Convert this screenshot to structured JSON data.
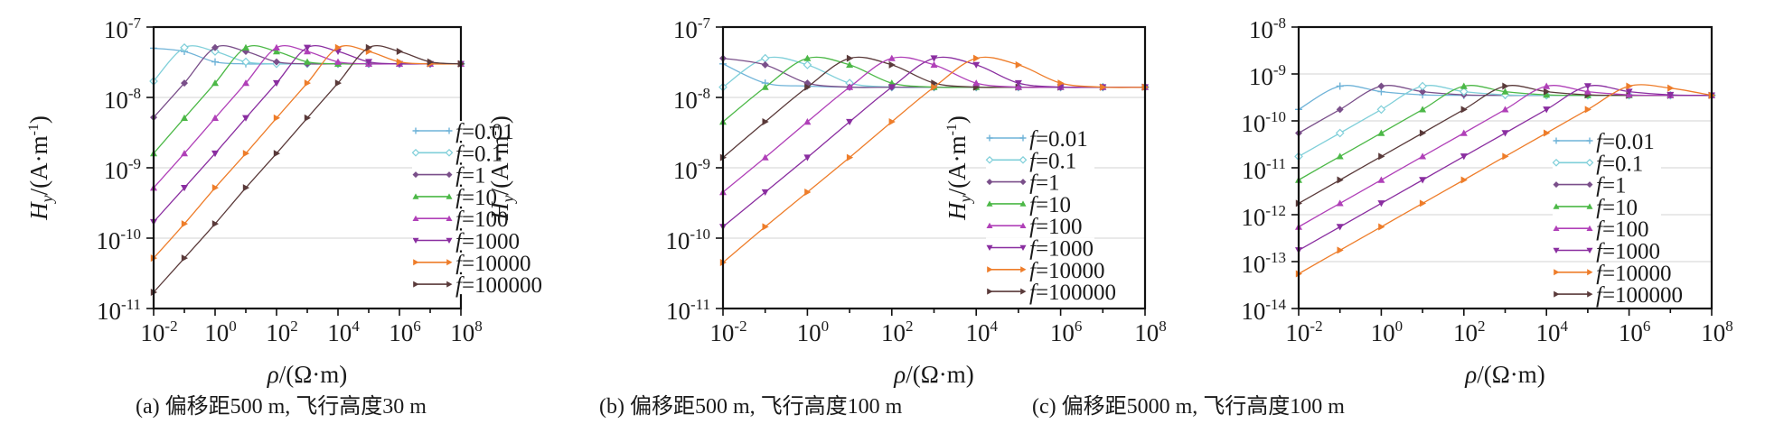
{
  "figure": {
    "panels": [
      "a",
      "b",
      "c"
    ]
  },
  "legend_styles": [
    {
      "name": "f=0.01",
      "color": "#6fb3d8",
      "marker": "plus"
    },
    {
      "name": "f=0.1",
      "color": "#7fcfd9",
      "marker": "open-diamond"
    },
    {
      "name": "f=1",
      "color": "#7a4f8a",
      "marker": "diamond"
    },
    {
      "name": "f=10",
      "color": "#4cb847",
      "marker": "triangle-up"
    },
    {
      "name": "f=100",
      "color": "#b040b8",
      "marker": "triangle-up"
    },
    {
      "name": "f=1000",
      "color": "#8a2ea0",
      "marker": "triangle-down"
    },
    {
      "name": "f=10000",
      "color": "#ee7d2a",
      "marker": "triangle-right"
    },
    {
      "name": "f=100000",
      "color": "#5a3a3a",
      "marker": "triangle-right"
    }
  ],
  "chart_data": [
    {
      "type": "line",
      "panel": "a",
      "caption": "(a) 偏移距500 m, 飞行高度30 m",
      "xlabel": "ρ/(Ω·m)",
      "ylabel": "Hy/(A·m-1)",
      "xscale": "log",
      "yscale": "log",
      "xlim": [
        0.01,
        100000000
      ],
      "ylim": [
        1e-11,
        1e-07
      ],
      "xticks": [
        "10-2",
        "100",
        "102",
        "104",
        "106",
        "108"
      ],
      "yticks": [
        "10-7",
        "10-8",
        "10-9",
        "10-10",
        "10-11"
      ],
      "grid": "horizontal",
      "legend_position": "right-middle",
      "x": [
        0.01,
        0.1,
        1,
        10,
        100,
        1000,
        10000,
        100000,
        1000000,
        10000000,
        100000000
      ],
      "series": [
        {
          "name": "f=0.01",
          "style": 0,
          "values": [
            5e-08,
            4.5e-08,
            3.2e-08,
            3e-08,
            3e-08,
            3e-08,
            3e-08,
            3e-08,
            3e-08,
            3e-08,
            3e-08
          ]
        },
        {
          "name": "f=0.1",
          "style": 1,
          "values": [
            1.7e-08,
            5.1e-08,
            4.5e-08,
            3.2e-08,
            3e-08,
            3e-08,
            3e-08,
            3e-08,
            3e-08,
            3e-08,
            3e-08
          ]
        },
        {
          "name": "f=1",
          "style": 2,
          "values": [
            5.2e-09,
            1.6e-08,
            5.1e-08,
            4.5e-08,
            3.2e-08,
            3e-08,
            3e-08,
            3e-08,
            3e-08,
            3e-08,
            3e-08
          ]
        },
        {
          "name": "f=10",
          "style": 3,
          "values": [
            1.6e-09,
            5.1e-09,
            1.6e-08,
            5.1e-08,
            4.5e-08,
            3.2e-08,
            3e-08,
            3e-08,
            3e-08,
            3e-08,
            3e-08
          ]
        },
        {
          "name": "f=100",
          "style": 4,
          "values": [
            5.2e-10,
            1.6e-09,
            5.1e-09,
            1.6e-08,
            5.1e-08,
            4.5e-08,
            3.2e-08,
            3e-08,
            3e-08,
            3e-08,
            3e-08
          ]
        },
        {
          "name": "f=1000",
          "style": 5,
          "values": [
            1.7e-10,
            5.2e-10,
            1.6e-09,
            5.1e-09,
            1.6e-08,
            5.1e-08,
            4.5e-08,
            3.2e-08,
            3e-08,
            3e-08,
            3e-08
          ]
        },
        {
          "name": "f=10000",
          "style": 6,
          "values": [
            5.2e-11,
            1.6e-10,
            5.2e-10,
            1.6e-09,
            5.1e-09,
            1.6e-08,
            5.1e-08,
            4.5e-08,
            3.2e-08,
            3e-08,
            3e-08
          ]
        },
        {
          "name": "f=100000",
          "style": 7,
          "values": [
            1.7e-11,
            5.2e-11,
            1.6e-10,
            5.2e-10,
            1.6e-09,
            5.1e-09,
            1.6e-08,
            5.1e-08,
            4.5e-08,
            3.2e-08,
            3e-08
          ]
        }
      ]
    },
    {
      "type": "line",
      "panel": "b",
      "caption": "(b) 偏移距500 m, 飞行高度100 m",
      "xlabel": "ρ/(Ω·m)",
      "ylabel": "Hy/(A·m-1)",
      "xscale": "log",
      "yscale": "log",
      "xlim": [
        0.01,
        100000000
      ],
      "ylim": [
        1e-11,
        1e-07
      ],
      "xticks": [
        "10-2",
        "100",
        "102",
        "104",
        "106",
        "108"
      ],
      "yticks": [
        "10-7",
        "10-8",
        "10-9",
        "10-10",
        "10-11"
      ],
      "grid": "horizontal",
      "legend_position": "right-middle",
      "x": [
        0.01,
        0.1,
        1,
        10,
        100,
        1000,
        10000,
        100000,
        1000000,
        10000000,
        100000000
      ],
      "series": [
        {
          "name": "f=0.01",
          "style": 0,
          "values": [
            3e-08,
            1.6e-08,
            1.45e-08,
            1.4e-08,
            1.4e-08,
            1.4e-08,
            1.4e-08,
            1.4e-08,
            1.4e-08,
            1.4e-08,
            1.4e-08
          ]
        },
        {
          "name": "f=0.1",
          "style": 1,
          "values": [
            1.4e-08,
            3.6e-08,
            2.9e-08,
            1.6e-08,
            1.4e-08,
            1.4e-08,
            1.4e-08,
            1.4e-08,
            1.4e-08,
            1.4e-08,
            1.4e-08
          ]
        },
        {
          "name": "f=1",
          "style": 2,
          "values": [
            3.6e-08,
            2.9e-08,
            1.6e-08,
            1.4e-08,
            1.4e-08,
            1.4e-08,
            1.4e-08,
            1.4e-08,
            1.4e-08,
            1.4e-08,
            1.4e-08
          ]
        },
        {
          "name": "f=10",
          "style": 3,
          "values": [
            4.5e-09,
            1.4e-08,
            3.6e-08,
            2.9e-08,
            1.6e-08,
            1.4e-08,
            1.4e-08,
            1.4e-08,
            1.4e-08,
            1.4e-08,
            1.4e-08
          ]
        },
        {
          "name": "f=100",
          "style": 7,
          "values": [
            1.4e-09,
            4.5e-09,
            1.4e-08,
            3.6e-08,
            2.9e-08,
            1.6e-08,
            1.4e-08,
            1.4e-08,
            1.4e-08,
            1.4e-08,
            1.4e-08
          ]
        },
        {
          "name": "f=1000",
          "style": 4,
          "values": [
            4.5e-10,
            1.4e-09,
            4.5e-09,
            1.4e-08,
            3.6e-08,
            2.9e-08,
            1.6e-08,
            1.4e-08,
            1.4e-08,
            1.4e-08,
            1.4e-08
          ]
        },
        {
          "name": "f=10000",
          "style": 5,
          "values": [
            1.45e-10,
            4.5e-10,
            1.4e-09,
            4.5e-09,
            1.4e-08,
            3.6e-08,
            2.9e-08,
            1.6e-08,
            1.4e-08,
            1.4e-08,
            1.4e-08
          ]
        },
        {
          "name": "f=100000",
          "style": 6,
          "values": [
            4.5e-11,
            1.45e-10,
            4.5e-10,
            1.4e-09,
            4.5e-09,
            1.4e-08,
            3.6e-08,
            2.9e-08,
            1.6e-08,
            1.4e-08,
            1.4e-08
          ]
        }
      ]
    },
    {
      "type": "line",
      "panel": "c",
      "caption": "(c) 偏移距5000 m, 飞行高度100 m",
      "xlabel": "ρ/(Ω·m)",
      "ylabel": "Hy/(A·m-1)",
      "xscale": "log",
      "yscale": "log",
      "xlim": [
        0.01,
        100000000
      ],
      "ylim": [
        1e-14,
        1e-08
      ],
      "xticks": [
        "10-2",
        "100",
        "102",
        "104",
        "106",
        "108"
      ],
      "yticks": [
        "10-8",
        "10-9",
        "10-10",
        "10-11",
        "10-12",
        "10-13",
        "10-14"
      ],
      "grid": "horizontal",
      "legend_position": "right-middle",
      "x": [
        0.01,
        0.1,
        1,
        10,
        100,
        1000,
        10000,
        100000,
        1000000,
        10000000,
        100000000
      ],
      "series": [
        {
          "name": "f=0.01",
          "style": 0,
          "values": [
            1.75e-10,
            5.5e-10,
            4.2e-10,
            3.6e-10,
            3.5e-10,
            3.5e-10,
            3.5e-10,
            3.5e-10,
            3.5e-10,
            3.5e-10,
            3.5e-10
          ]
        },
        {
          "name": "f=0.1",
          "style": 2,
          "values": [
            5.5e-11,
            1.75e-10,
            5.5e-10,
            4.2e-10,
            3.6e-10,
            3.5e-10,
            3.5e-10,
            3.5e-10,
            3.5e-10,
            3.5e-10,
            3.5e-10
          ]
        },
        {
          "name": "f=1",
          "style": 1,
          "values": [
            1.75e-11,
            5.5e-11,
            1.75e-10,
            5.5e-10,
            4.2e-10,
            3.6e-10,
            3.5e-10,
            3.5e-10,
            3.5e-10,
            3.5e-10,
            3.5e-10
          ]
        },
        {
          "name": "f=10",
          "style": 3,
          "values": [
            5.5e-12,
            1.75e-11,
            5.5e-11,
            1.75e-10,
            5.5e-10,
            4.2e-10,
            3.6e-10,
            3.5e-10,
            3.5e-10,
            3.5e-10,
            3.5e-10
          ]
        },
        {
          "name": "f=100",
          "style": 7,
          "values": [
            1.75e-12,
            5.5e-12,
            1.75e-11,
            5.5e-11,
            1.75e-10,
            5.5e-10,
            4.2e-10,
            3.6e-10,
            3.5e-10,
            3.5e-10,
            3.5e-10
          ]
        },
        {
          "name": "f=1000",
          "style": 4,
          "values": [
            5.5e-13,
            1.75e-12,
            5.5e-12,
            1.75e-11,
            5.5e-11,
            1.75e-10,
            5.5e-10,
            4.2e-10,
            3.6e-10,
            3.5e-10,
            3.5e-10
          ]
        },
        {
          "name": "f=10000",
          "style": 5,
          "values": [
            1.75e-13,
            5.5e-13,
            1.75e-12,
            5.5e-12,
            1.75e-11,
            5.5e-11,
            1.75e-10,
            5.5e-10,
            4.2e-10,
            3.6e-10,
            3.5e-10
          ]
        },
        {
          "name": "f=100000",
          "style": 6,
          "values": [
            5.5e-14,
            1.75e-13,
            5.5e-13,
            1.75e-12,
            5.5e-12,
            1.75e-11,
            5.5e-11,
            1.75e-10,
            5.5e-10,
            5e-10,
            3.5e-10
          ]
        }
      ]
    }
  ]
}
